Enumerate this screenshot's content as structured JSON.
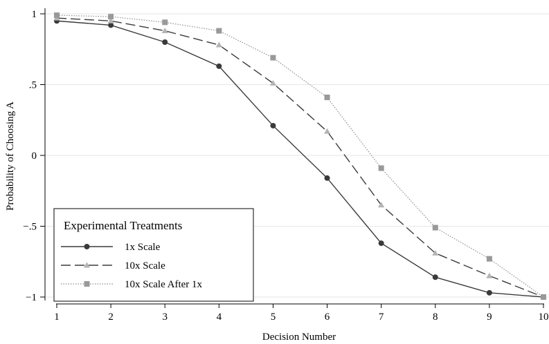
{
  "chart_data": {
    "type": "line",
    "xlabel": "Decision Number",
    "ylabel": "Probability of Choosing A",
    "x": [
      1,
      2,
      3,
      4,
      5,
      6,
      7,
      8,
      9,
      10
    ],
    "xlim": [
      1,
      10
    ],
    "ylim": [
      -1,
      1
    ],
    "y_ticks": [
      -1,
      -0.5,
      0,
      0.5,
      1
    ],
    "y_tick_labels": [
      "−1",
      "−.5",
      "0",
      ".5",
      "1"
    ],
    "grid": "horizontal",
    "legend": {
      "title": "Experimental Treatments",
      "placement": "bottom-left"
    },
    "series": [
      {
        "name": "1x Scale",
        "values": [
          0.95,
          0.92,
          0.8,
          0.63,
          0.21,
          -0.16,
          -0.62,
          -0.86,
          -0.97,
          -1.0
        ],
        "color": "#3a3a3a",
        "line_style": "solid",
        "marker": "circle"
      },
      {
        "name": "10x Scale",
        "values": [
          0.97,
          0.95,
          0.88,
          0.78,
          0.51,
          0.17,
          -0.35,
          -0.69,
          -0.85,
          -1.0
        ],
        "color": "#3a3a3a",
        "marker_color": "#b4b4b4",
        "line_style": "dashed",
        "marker": "triangle"
      },
      {
        "name": "10x Scale After 1x",
        "values": [
          0.99,
          0.98,
          0.94,
          0.88,
          0.69,
          0.41,
          -0.09,
          -0.51,
          -0.73,
          -1.0
        ],
        "color": "#8c8c8c",
        "marker_color": "#999999",
        "line_style": "dotted",
        "marker": "square"
      }
    ]
  }
}
